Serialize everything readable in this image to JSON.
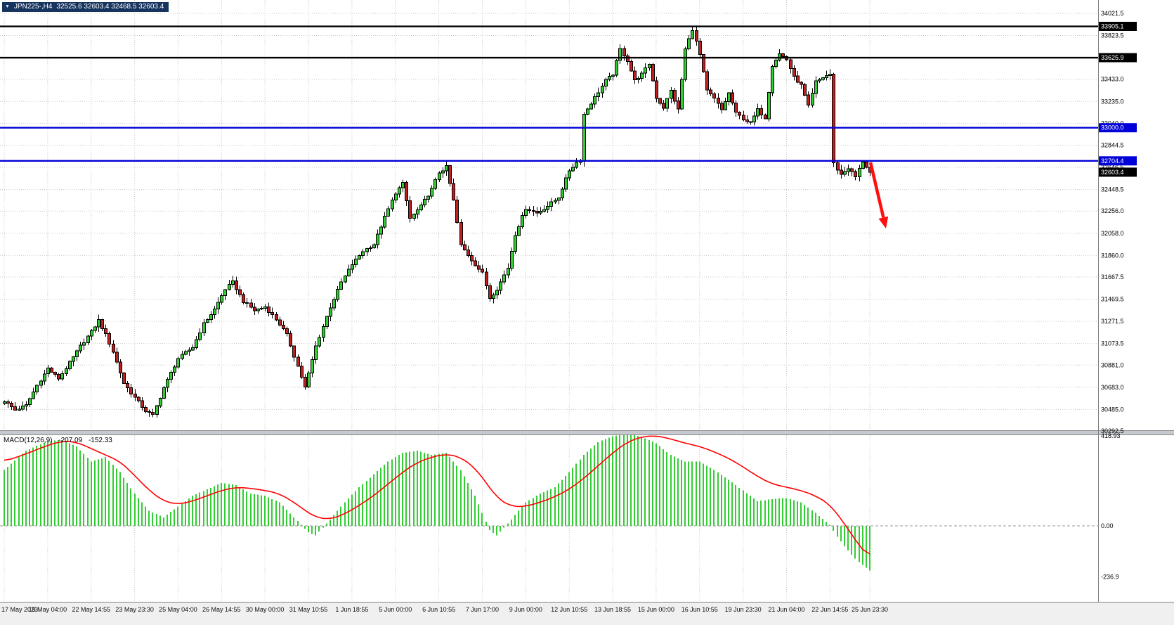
{
  "header": {
    "symbol_period": "JPN225-,H4",
    "ohlc": "32525.6 32603.4 32468.5 32603.4",
    "icon": "triangle-down"
  },
  "chart_data": {
    "type": "candlestick",
    "symbol": "JPN225-",
    "timeframe": "H4",
    "background": "#FFFFFF",
    "current_bar": {
      "open": 32525.6,
      "high": 32603.4,
      "low": 32468.5,
      "close": 32603.4
    },
    "price_axis": {
      "ticks": [
        "34021.5",
        "33823.5",
        "33625.5",
        "33433.0",
        "33235.0",
        "33040.0",
        "32844.5",
        "32646.5",
        "32448.5",
        "32256.0",
        "32058.0",
        "31860.0",
        "31667.5",
        "31469.5",
        "31271.5",
        "31073.5",
        "30881.0",
        "30683.0",
        "30485.0",
        "30292.5"
      ]
    },
    "time_axis": {
      "ticks": [
        {
          "label": "17 May 2023",
          "i": 0
        },
        {
          "label": "19 May 04:00",
          "i": 12
        },
        {
          "label": "22 May 14:55",
          "i": 24
        },
        {
          "label": "23 May 23:30",
          "i": 36
        },
        {
          "label": "25 May 04:00",
          "i": 48
        },
        {
          "label": "26 May 14:55",
          "i": 60
        },
        {
          "label": "30 May 00:00",
          "i": 72
        },
        {
          "label": "31 May 10:55",
          "i": 84
        },
        {
          "label": "1 Jun 18:55",
          "i": 96
        },
        {
          "label": "5 Jun 00:00",
          "i": 108
        },
        {
          "label": "6 Jun 10:55",
          "i": 120
        },
        {
          "label": "7 Jun 17:00",
          "i": 132
        },
        {
          "label": "9 Jun 00:00",
          "i": 144
        },
        {
          "label": "12 Jun 10:55",
          "i": 156
        },
        {
          "label": "13 Jun 18:55",
          "i": 168
        },
        {
          "label": "15 Jun 00:00",
          "i": 180
        },
        {
          "label": "16 Jun 10:55",
          "i": 192
        },
        {
          "label": "19 Jun 23:30",
          "i": 204
        },
        {
          "label": "21 Jun 04:00",
          "i": 216
        },
        {
          "label": "22 Jun 14:55",
          "i": 228
        },
        {
          "label": "25 Jun 23:30",
          "i": 239
        }
      ]
    },
    "hlines": [
      {
        "value": 33905.1,
        "label": "33905.1",
        "color": "#000000"
      },
      {
        "value": 33625.9,
        "label": "33625.9",
        "color": "#000000"
      },
      {
        "value": 33000.0,
        "label": "33000.0",
        "color": "#0000D8"
      },
      {
        "value": 32704.4,
        "label": "32704.4",
        "color": "#0000D8"
      }
    ],
    "current_price": {
      "value": 32603.4,
      "label": "32603.4"
    },
    "candles": {
      "count": 240,
      "up_color": "#32CD32",
      "down_color": "#C02020",
      "outline": "#000000",
      "noise": 13,
      "anchors": [
        [
          0,
          30560
        ],
        [
          3,
          30480
        ],
        [
          6,
          30520
        ],
        [
          9,
          30700
        ],
        [
          12,
          30850
        ],
        [
          15,
          30760
        ],
        [
          18,
          30900
        ],
        [
          21,
          31050
        ],
        [
          24,
          31180
        ],
        [
          26,
          31280
        ],
        [
          28,
          31150
        ],
        [
          30,
          31000
        ],
        [
          33,
          30720
        ],
        [
          36,
          30590
        ],
        [
          39,
          30470
        ],
        [
          41,
          30430
        ],
        [
          44,
          30680
        ],
        [
          48,
          30940
        ],
        [
          52,
          31040
        ],
        [
          55,
          31250
        ],
        [
          58,
          31380
        ],
        [
          61,
          31560
        ],
        [
          63,
          31620
        ],
        [
          66,
          31450
        ],
        [
          69,
          31370
        ],
        [
          72,
          31400
        ],
        [
          75,
          31290
        ],
        [
          78,
          31150
        ],
        [
          81,
          30870
        ],
        [
          83,
          30680
        ],
        [
          86,
          31050
        ],
        [
          90,
          31400
        ],
        [
          93,
          31620
        ],
        [
          96,
          31780
        ],
        [
          99,
          31900
        ],
        [
          102,
          31960
        ],
        [
          105,
          32200
        ],
        [
          108,
          32420
        ],
        [
          110,
          32500
        ],
        [
          112,
          32190
        ],
        [
          115,
          32300
        ],
        [
          118,
          32450
        ],
        [
          120,
          32600
        ],
        [
          122,
          32650
        ],
        [
          124,
          32350
        ],
        [
          126,
          31950
        ],
        [
          129,
          31820
        ],
        [
          132,
          31700
        ],
        [
          134,
          31480
        ],
        [
          136,
          31560
        ],
        [
          139,
          31750
        ],
        [
          141,
          32050
        ],
        [
          144,
          32280
        ],
        [
          147,
          32240
        ],
        [
          150,
          32300
        ],
        [
          153,
          32380
        ],
        [
          156,
          32620
        ],
        [
          158,
          32690
        ],
        [
          159,
          32710
        ],
        [
          160,
          33120
        ],
        [
          162,
          33220
        ],
        [
          164,
          33320
        ],
        [
          166,
          33420
        ],
        [
          168,
          33480
        ],
        [
          170,
          33700
        ],
        [
          172,
          33600
        ],
        [
          174,
          33420
        ],
        [
          176,
          33480
        ],
        [
          178,
          33570
        ],
        [
          180,
          33270
        ],
        [
          182,
          33180
        ],
        [
          184,
          33330
        ],
        [
          186,
          33160
        ],
        [
          188,
          33700
        ],
        [
          190,
          33880
        ],
        [
          192,
          33650
        ],
        [
          194,
          33330
        ],
        [
          196,
          33260
        ],
        [
          198,
          33160
        ],
        [
          200,
          33310
        ],
        [
          202,
          33130
        ],
        [
          204,
          33080
        ],
        [
          206,
          33040
        ],
        [
          208,
          33160
        ],
        [
          210,
          33090
        ],
        [
          212,
          33560
        ],
        [
          214,
          33660
        ],
        [
          216,
          33610
        ],
        [
          218,
          33450
        ],
        [
          220,
          33380
        ],
        [
          222,
          33190
        ],
        [
          224,
          33410
        ],
        [
          226,
          33450
        ],
        [
          228,
          33480
        ],
        [
          229,
          32680
        ],
        [
          231,
          32580
        ],
        [
          233,
          32640
        ],
        [
          235,
          32560
        ],
        [
          237,
          32700
        ],
        [
          239,
          32603.4
        ]
      ]
    },
    "annotation_arrow": {
      "from": [
        1239,
        231
      ],
      "to": [
        1261,
        325
      ],
      "color": "#FF1010",
      "meaning": "bearish continuation"
    },
    "macd": {
      "label": "MACD(12,26,9)",
      "value_main": "-207.09",
      "value_signal": "-152.33",
      "hist_color": "#32CD32",
      "signal_color": "#FF0000",
      "axis_labels": [
        {
          "label": "418.93",
          "value": 418.93
        },
        {
          "label": "0.00",
          "value": 0
        },
        {
          "label": "-236.9",
          "value": -236.9
        }
      ],
      "anchors": [
        [
          0,
          260,
          300
        ],
        [
          6,
          350,
          335
        ],
        [
          12,
          395,
          375
        ],
        [
          16,
          400,
          395
        ],
        [
          20,
          370,
          390
        ],
        [
          24,
          300,
          360
        ],
        [
          28,
          320,
          330
        ],
        [
          32,
          250,
          300
        ],
        [
          36,
          150,
          235
        ],
        [
          40,
          70,
          165
        ],
        [
          44,
          40,
          115
        ],
        [
          48,
          90,
          100
        ],
        [
          52,
          140,
          115
        ],
        [
          56,
          170,
          140
        ],
        [
          60,
          200,
          165
        ],
        [
          64,
          190,
          180
        ],
        [
          68,
          150,
          175
        ],
        [
          72,
          140,
          165
        ],
        [
          76,
          110,
          150
        ],
        [
          80,
          40,
          110
        ],
        [
          84,
          -30,
          60
        ],
        [
          86,
          -45,
          40
        ],
        [
          90,
          30,
          30
        ],
        [
          94,
          110,
          55
        ],
        [
          98,
          180,
          95
        ],
        [
          102,
          240,
          140
        ],
        [
          106,
          300,
          195
        ],
        [
          110,
          340,
          250
        ],
        [
          114,
          350,
          295
        ],
        [
          118,
          330,
          320
        ],
        [
          122,
          340,
          335
        ],
        [
          126,
          260,
          320
        ],
        [
          130,
          140,
          270
        ],
        [
          134,
          -20,
          180
        ],
        [
          136,
          -45,
          130
        ],
        [
          140,
          30,
          90
        ],
        [
          144,
          110,
          90
        ],
        [
          148,
          150,
          110
        ],
        [
          152,
          180,
          135
        ],
        [
          156,
          250,
          170
        ],
        [
          160,
          330,
          220
        ],
        [
          164,
          390,
          280
        ],
        [
          168,
          418,
          340
        ],
        [
          172,
          430,
          390
        ],
        [
          176,
          415,
          415
        ],
        [
          180,
          385,
          420
        ],
        [
          184,
          330,
          405
        ],
        [
          188,
          300,
          385
        ],
        [
          192,
          300,
          370
        ],
        [
          196,
          260,
          345
        ],
        [
          200,
          215,
          315
        ],
        [
          204,
          165,
          275
        ],
        [
          208,
          115,
          230
        ],
        [
          212,
          125,
          195
        ],
        [
          216,
          130,
          180
        ],
        [
          220,
          110,
          165
        ],
        [
          224,
          60,
          140
        ],
        [
          228,
          5,
          100
        ],
        [
          230,
          -50,
          55
        ],
        [
          232,
          -95,
          10
        ],
        [
          234,
          -135,
          -40
        ],
        [
          236,
          -168,
          -90
        ],
        [
          238,
          -195,
          -130
        ],
        [
          239,
          -207.09,
          -152.33
        ]
      ]
    }
  }
}
